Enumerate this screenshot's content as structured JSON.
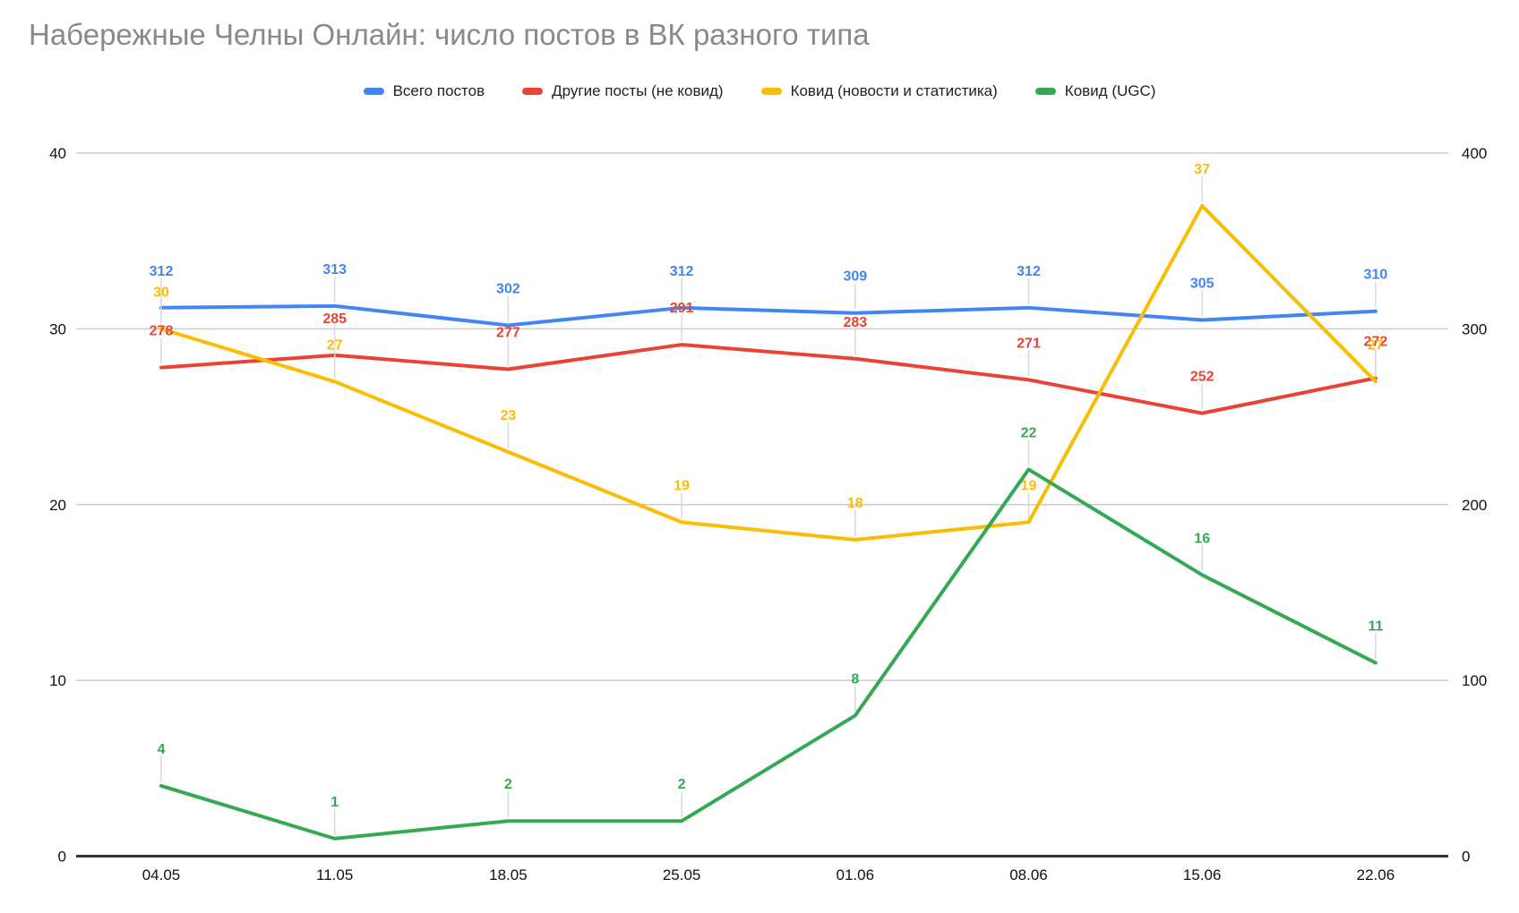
{
  "colors": {
    "background": "#ffffff",
    "title_text": "#898989",
    "legend_text": "#202124",
    "axis_label_text": "#111111",
    "grid_line": "#cccccc",
    "axis_line": "#333333",
    "label_leader_line": "#d9d9d9",
    "series_blue": "#4285F4",
    "series_red": "#EA4335",
    "series_yellow": "#FBBC04",
    "series_green": "#34A853"
  },
  "chart_data": {
    "type": "line",
    "title": "Набережные Челны Онлайн: число постов в ВК разного типа",
    "categories": [
      "04.05",
      "11.05",
      "18.05",
      "25.05",
      "01.06",
      "08.06",
      "15.06",
      "22.06"
    ],
    "series": [
      {
        "id": "total-posts",
        "name": "Всего постов",
        "color": "#4285F4",
        "axis": "right",
        "values": [
          312,
          313,
          302,
          312,
          309,
          312,
          305,
          310
        ]
      },
      {
        "id": "other-posts-non-covid",
        "name": "Другие посты (не ковид)",
        "color": "#EA4335",
        "axis": "right",
        "values": [
          278,
          285,
          277,
          291,
          283,
          271,
          252,
          272
        ]
      },
      {
        "id": "covid-news-statistics",
        "name": "Ковид (новости и статистика)",
        "color": "#FBBC04",
        "axis": "left",
        "values": [
          30,
          27,
          23,
          19,
          18,
          19,
          37,
          27
        ]
      },
      {
        "id": "covid-ugc",
        "name": "Ковид (UGC)",
        "color": "#34A853",
        "axis": "left",
        "values": [
          4,
          1,
          2,
          2,
          8,
          22,
          16,
          11
        ]
      }
    ],
    "left_axis": {
      "min": 0,
      "max": 40,
      "ticks": [
        0,
        10,
        20,
        30,
        40
      ]
    },
    "right_axis": {
      "min": 0,
      "max": 400,
      "ticks": [
        0,
        100,
        200,
        300,
        400
      ]
    },
    "grid": true,
    "legend_position": "top",
    "data_labels": true
  }
}
